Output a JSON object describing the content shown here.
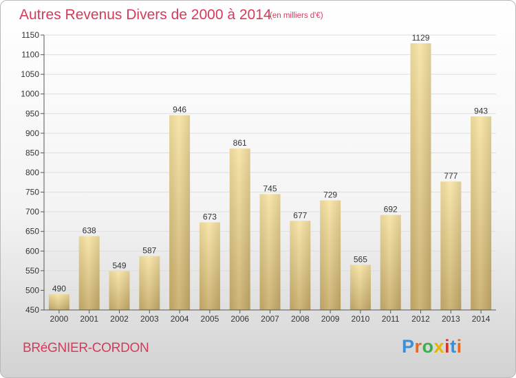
{
  "header": {
    "title": "Autres Revenus Divers de 2000 à 2014",
    "subtitle": "(en milliers d'€)"
  },
  "footer": {
    "place": "BRéGNIER-CORDON",
    "logo_letters": [
      "P",
      "r",
      "o",
      "x",
      "i",
      "t",
      "i"
    ]
  },
  "colors": {
    "title": "#d43a5a",
    "bar_light": "#f7e3a3",
    "bar_dark": "#c8ad6a",
    "grid": "#dddddd",
    "logo": [
      "#3a8fd8",
      "#e86a1c",
      "#3ab04a",
      "#e8b400",
      "#d8342c",
      "#3a8fd8",
      "#e86a1c"
    ]
  },
  "chart_data": {
    "type": "bar",
    "categories": [
      "2000",
      "2001",
      "2002",
      "2003",
      "2004",
      "2005",
      "2006",
      "2007",
      "2008",
      "2009",
      "2010",
      "2011",
      "2012",
      "2013",
      "2014"
    ],
    "values": [
      490,
      638,
      549,
      587,
      946,
      673,
      861,
      745,
      677,
      729,
      565,
      692,
      1129,
      777,
      943
    ],
    "title": "Autres Revenus Divers de 2000 à 2014",
    "xlabel": "",
    "ylabel": "",
    "ylim": [
      450,
      1150
    ],
    "yticks": [
      450,
      500,
      550,
      600,
      650,
      700,
      750,
      800,
      850,
      900,
      950,
      1000,
      1050,
      1100,
      1150
    ],
    "grid": true
  }
}
